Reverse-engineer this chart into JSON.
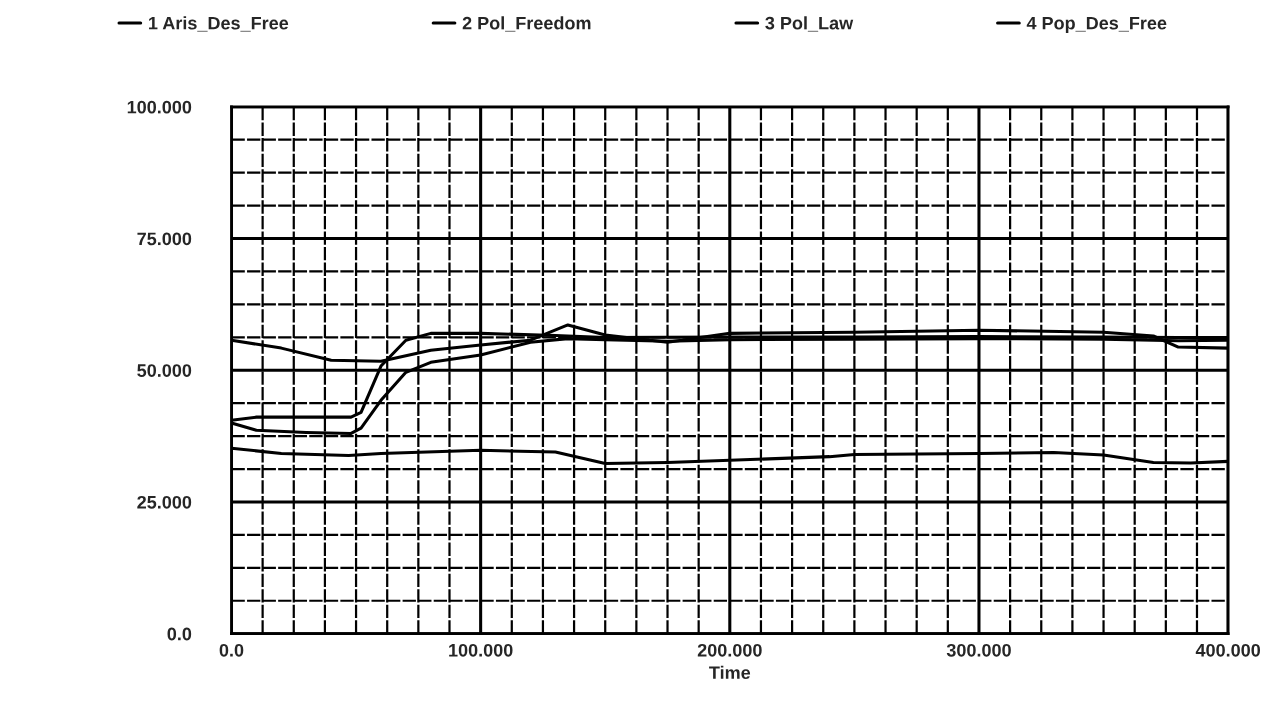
{
  "chart_data": {
    "type": "line",
    "xlabel": "Time",
    "xlim": [
      0,
      400
    ],
    "ylim": [
      0,
      100
    ],
    "xticks": [
      {
        "value": 0,
        "label": "0.0"
      },
      {
        "value": 100,
        "label": "100.000"
      },
      {
        "value": 200,
        "label": "200.000"
      },
      {
        "value": 300,
        "label": "300.000"
      },
      {
        "value": 400,
        "label": "400.000"
      }
    ],
    "yticks": [
      {
        "value": 0,
        "label": "0.0"
      },
      {
        "value": 25,
        "label": "25.000"
      },
      {
        "value": 50,
        "label": "50.000"
      },
      {
        "value": 75,
        "label": "75.000"
      },
      {
        "value": 100,
        "label": "100.000"
      }
    ],
    "grid": true,
    "legend": "top",
    "marker": "none",
    "line_style": "solid",
    "series": [
      {
        "name": "1 Aris_Des_Free",
        "color": "#000000",
        "x": [
          0,
          20,
          47,
          60,
          100,
          130,
          150,
          175,
          200,
          240,
          250,
          300,
          330,
          350,
          370,
          385,
          400
        ],
        "values": [
          35.2,
          34.2,
          33.8,
          34.2,
          34.8,
          34.5,
          32.3,
          32.5,
          32.9,
          33.6,
          34,
          34.2,
          34.4,
          33.9,
          32.5,
          32.4,
          32.7
        ]
      },
      {
        "name": "2 Pol_Freedom",
        "color": "#000000",
        "x": [
          0,
          10,
          30,
          48,
          52,
          60,
          70,
          80,
          100,
          120,
          135,
          150,
          175,
          200,
          250,
          300,
          350,
          380,
          400
        ],
        "values": [
          40,
          38.6,
          38.2,
          38,
          39,
          44.3,
          49.6,
          51.5,
          52.9,
          55.3,
          56,
          55.8,
          55.5,
          55.8,
          55.9,
          56,
          55.9,
          55.6,
          55.7
        ]
      },
      {
        "name": "3 Pol_Law",
        "color": "#000000",
        "x": [
          0,
          10,
          30,
          48,
          52,
          60,
          70,
          80,
          100,
          130,
          150,
          200,
          250,
          300,
          350,
          380,
          400
        ],
        "values": [
          40.5,
          41.1,
          41.1,
          41.1,
          42,
          50.8,
          55.7,
          57,
          57,
          56.6,
          56.2,
          56.3,
          56.3,
          56.4,
          56.3,
          56.2,
          56.2
        ]
      },
      {
        "name": "4 Pop_Des_Free",
        "color": "#000000",
        "x": [
          0,
          20,
          40,
          60,
          80,
          100,
          120,
          135,
          150,
          175,
          200,
          250,
          300,
          350,
          370,
          380,
          400
        ],
        "values": [
          55.7,
          54.2,
          51.9,
          51.7,
          53.8,
          54.8,
          55.7,
          58.6,
          56.7,
          55.3,
          57,
          57.2,
          57.6,
          57.2,
          56.5,
          54.4,
          54.2
        ]
      }
    ]
  }
}
